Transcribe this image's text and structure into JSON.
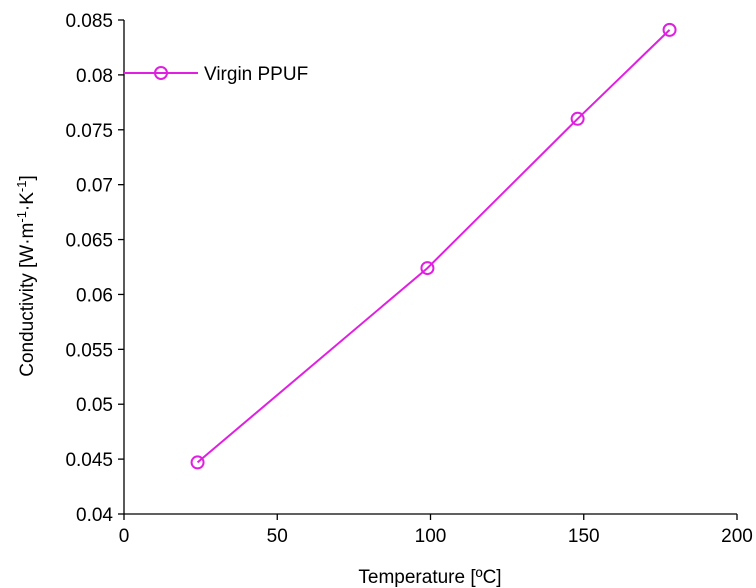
{
  "chart_data": {
    "type": "line",
    "xlabel": "Temperature [ºC]",
    "ylabel": {
      "parts": [
        "Conductivity [W·m",
        "-1",
        "·K",
        "-1",
        "]"
      ]
    },
    "xlim": [
      0,
      200
    ],
    "ylim": [
      0.04,
      0.085
    ],
    "x_ticks": [
      {
        "value": 0,
        "label": "0"
      },
      {
        "value": 50,
        "label": "50"
      },
      {
        "value": 100,
        "label": "100"
      },
      {
        "value": 150,
        "label": "150"
      },
      {
        "value": 200,
        "label": "200"
      }
    ],
    "y_ticks": [
      {
        "value": 0.04,
        "label": "0.04"
      },
      {
        "value": 0.045,
        "label": "0.045"
      },
      {
        "value": 0.05,
        "label": "0.05"
      },
      {
        "value": 0.055,
        "label": "0.055"
      },
      {
        "value": 0.06,
        "label": "0.06"
      },
      {
        "value": 0.065,
        "label": "0.065"
      },
      {
        "value": 0.07,
        "label": "0.07"
      },
      {
        "value": 0.075,
        "label": "0.075"
      },
      {
        "value": 0.08,
        "label": "0.08"
      },
      {
        "value": 0.085,
        "label": "0.085"
      }
    ],
    "grid": false,
    "legend_position": "top-left",
    "series": [
      {
        "name": "Virgin PPUF",
        "color": "#e020e0",
        "marker": "open-circle",
        "x": [
          24,
          99,
          148,
          178
        ],
        "y": [
          0.0447,
          0.0624,
          0.076,
          0.0841
        ]
      }
    ]
  }
}
